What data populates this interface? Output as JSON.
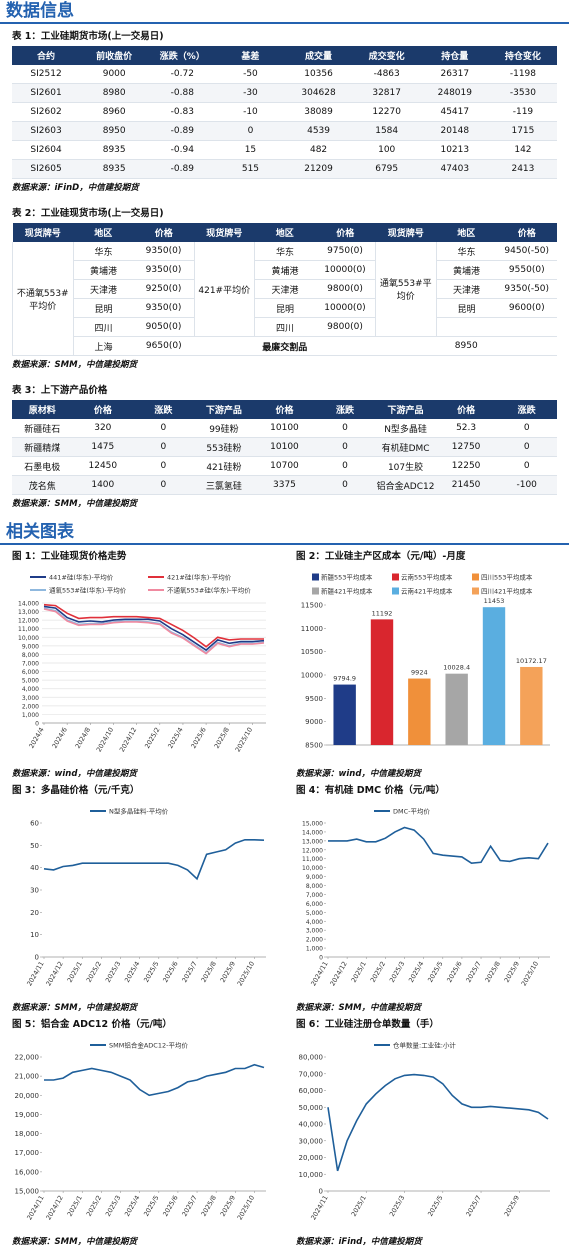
{
  "header": {
    "title": "数据信息"
  },
  "table1": {
    "title": "表 1：工业硅期货市场(上一交易日)",
    "columns": [
      "合约",
      "前收盘价",
      "涨跌（%）",
      "基差",
      "成交量",
      "成交变化",
      "持仓量",
      "持仓变化"
    ],
    "rows": [
      [
        "SI2512",
        "9000",
        "-0.72",
        "-50",
        "10356",
        "-4863",
        "26317",
        "-1198"
      ],
      [
        "SI2601",
        "8980",
        "-0.88",
        "-30",
        "304628",
        "32817",
        "248019",
        "-3530"
      ],
      [
        "SI2602",
        "8960",
        "-0.83",
        "-10",
        "38089",
        "12270",
        "45417",
        "-119"
      ],
      [
        "SI2603",
        "8950",
        "-0.89",
        "0",
        "4539",
        "1584",
        "20148",
        "1715"
      ],
      [
        "SI2604",
        "8935",
        "-0.94",
        "15",
        "482",
        "100",
        "10213",
        "142"
      ],
      [
        "SI2605",
        "8935",
        "-0.89",
        "515",
        "21209",
        "6795",
        "47403",
        "2413"
      ]
    ],
    "source": "数据来源：iFinD，中信建投期货"
  },
  "table2": {
    "title": "表 2：工业硅现货市场(上一交易日)",
    "columns": [
      "现货牌号",
      "地区",
      "价格",
      "现货牌号",
      "地区",
      "价格",
      "现货牌号",
      "地区",
      "价格"
    ],
    "groups": [
      {
        "grade": "不通氧553#平均价",
        "rows": [
          [
            "华东",
            "9350(0)"
          ],
          [
            "黄埔港",
            "9350(0)"
          ],
          [
            "天津港",
            "9250(0)"
          ],
          [
            "昆明",
            "9350(0)"
          ],
          [
            "四川",
            "9050(0)"
          ],
          [
            "上海",
            "9650(0)"
          ]
        ]
      },
      {
        "grade": "421#平均价",
        "rows": [
          [
            "华东",
            "9750(0)"
          ],
          [
            "黄埔港",
            "10000(0)"
          ],
          [
            "天津港",
            "9800(0)"
          ],
          [
            "昆明",
            "10000(0)"
          ],
          [
            "四川",
            "9800(0)"
          ]
        ]
      },
      {
        "grade": "通氧553#平均价",
        "rows": [
          [
            "华东",
            "9450(-50)"
          ],
          [
            "黄埔港",
            "9550(0)"
          ],
          [
            "天津港",
            "9350(-50)"
          ],
          [
            "昆明",
            "9600(0)"
          ]
        ]
      }
    ],
    "cheapest": {
      "label": "最廉交割品",
      "value": "8950"
    },
    "source": "数据来源：SMM，中信建投期货"
  },
  "table3": {
    "title": "表 3：上下游产品价格",
    "columns": [
      "原材料",
      "价格",
      "涨跌",
      "下游产品",
      "价格",
      "涨跌",
      "下游产品",
      "价格",
      "涨跌"
    ],
    "rows": [
      [
        "新疆硅石",
        "320",
        "0",
        "99硅粉",
        "10100",
        "0",
        "N型多晶硅",
        "52.3",
        "0"
      ],
      [
        "新疆精煤",
        "1475",
        "0",
        "553硅粉",
        "10100",
        "0",
        "有机硅DMC",
        "12750",
        "0"
      ],
      [
        "石墨电极",
        "12450",
        "0",
        "421硅粉",
        "10700",
        "0",
        "107生胶",
        "12250",
        "0"
      ],
      [
        "茂名焦",
        "1400",
        "0",
        "三氯氢硅",
        "3375",
        "0",
        "铝合金ADC12",
        "21450",
        "-100"
      ]
    ],
    "source": "数据来源：SMM，中信建投期货"
  },
  "section2": {
    "title": "相关图表"
  },
  "chart_data": [
    {
      "type": "line",
      "title": "图 1：工业硅现货价格走势",
      "source": "数据来源：wind，中信建投期货",
      "grid": true,
      "legend": "top",
      "categories": [
        "2024/4",
        null,
        "2024/6",
        null,
        "2024/8",
        null,
        "2024/10",
        null,
        "2024/12",
        null,
        "2025/2",
        null,
        "2025/4",
        null,
        "2025/6",
        null,
        "2025/8",
        null,
        "2025/10",
        null
      ],
      "series": [
        {
          "name": "441#硅(华东)-平均价",
          "color": "#1f3c88",
          "values": [
            13600,
            13400,
            12300,
            11800,
            11900,
            11800,
            12000,
            12100,
            12100,
            12100,
            11900,
            11000,
            10300,
            9400,
            8500,
            9700,
            9300,
            9500,
            9500,
            9600
          ]
        },
        {
          "name": "421#硅(华东)-平均价",
          "color": "#e0303a",
          "values": [
            13800,
            13700,
            12800,
            12200,
            12300,
            12300,
            12400,
            12400,
            12400,
            12300,
            12200,
            11500,
            10800,
            9900,
            8900,
            10000,
            9700,
            9800,
            9800,
            9800
          ]
        },
        {
          "name": "通氧553#硅(华东)-平均价",
          "color": "#8fb8de",
          "values": [
            13400,
            13100,
            12000,
            11500,
            11600,
            11600,
            11800,
            11900,
            11900,
            11800,
            11600,
            10600,
            10000,
            9100,
            8200,
            9400,
            9000,
            9300,
            9300,
            9400
          ]
        },
        {
          "name": "不通氧553#硅(华东)-平均价",
          "color": "#f08aa0",
          "values": [
            13300,
            13000,
            11900,
            11400,
            11500,
            11500,
            11700,
            11800,
            11800,
            11700,
            11500,
            10500,
            9900,
            9000,
            8100,
            9300,
            8900,
            9200,
            9200,
            9350
          ]
        }
      ],
      "ylim": [
        0,
        14000
      ],
      "yticks": [
        0,
        {
          "value": 1000,
          "label": "1,000"
        },
        {
          "value": 2000,
          "label": "2,000"
        },
        {
          "value": 3000,
          "label": "3,000"
        },
        {
          "value": 4000,
          "label": "4,000"
        },
        {
          "value": 5000,
          "label": "5,000"
        },
        {
          "value": 6000,
          "label": "6,000"
        },
        {
          "value": 7000,
          "label": "7,000"
        },
        {
          "value": 8000,
          "label": "8,000"
        },
        {
          "value": 9000,
          "label": "9,000"
        },
        {
          "value": 10000,
          "label": "10,000"
        },
        {
          "value": 11000,
          "label": "11,000"
        },
        {
          "value": 12000,
          "label": "12,000"
        },
        {
          "value": 13000,
          "label": "13,000"
        },
        {
          "value": 14000,
          "label": "14,000"
        }
      ]
    },
    {
      "type": "bar",
      "title": "图 2：工业硅主产区成本（元/吨）-月度",
      "source": "数据来源：wind，中信建投期货",
      "grid": false,
      "legend": "top",
      "categories": [
        "新疆553平均成本",
        "云南553平均成本",
        "四川553平均成本",
        "新疆421平均成本",
        "云南421平均成本",
        "四川421平均成本"
      ],
      "values": [
        9794.9,
        11192,
        9924,
        10028.4,
        11453,
        10172.17
      ],
      "colors": [
        "#1f3c88",
        "#d9262e",
        "#f0903a",
        "#a6a6a6",
        "#5aaee0",
        "#f4a259"
      ],
      "ylim": [
        8500,
        11500
      ],
      "yticks": [
        8500,
        9000,
        9500,
        10000,
        10500,
        11000,
        11500
      ]
    },
    {
      "type": "line",
      "title": "图 3：多晶硅价格（元/千克）",
      "source": "数据来源：SMM，中信建投期货",
      "grid": false,
      "legend": "top",
      "categories": [
        "2024/11",
        null,
        "2024/12",
        null,
        "2025/1",
        null,
        "2025/2",
        null,
        "2025/3",
        null,
        "2025/4",
        null,
        "2025/5",
        null,
        "2025/6",
        null,
        "2025/7",
        null,
        "2025/8",
        null,
        "2025/9",
        null,
        "2025/10",
        null
      ],
      "series": [
        {
          "name": "N型多晶硅料-平均价",
          "color": "#1f5f9a",
          "values": [
            39.5,
            39,
            40.5,
            41,
            42,
            42,
            42,
            42,
            42,
            42,
            42,
            42,
            42,
            42,
            41,
            39,
            35,
            46,
            47,
            48,
            51,
            52.5,
            52.5,
            52.3
          ]
        }
      ],
      "ylim": [
        0,
        60
      ],
      "yticks": [
        0,
        10,
        20,
        30,
        40,
        50,
        60
      ]
    },
    {
      "type": "line",
      "title": "图 4：有机硅 DMC 价格（元/吨）",
      "source": "数据来源：SMM，中信建投期货",
      "grid": false,
      "legend": "top",
      "categories": [
        "2024/11",
        null,
        "2024/12",
        null,
        "2025/1",
        null,
        "2025/2",
        null,
        "2025/3",
        null,
        "2025/4",
        null,
        "2025/5",
        null,
        "2025/6",
        null,
        "2025/7",
        null,
        "2025/8",
        null,
        "2025/9",
        null,
        "2025/10",
        null
      ],
      "series": [
        {
          "name": "DMC-平均价",
          "color": "#1f5f9a",
          "values": [
            13000,
            13000,
            13000,
            13200,
            12900,
            12900,
            13300,
            14000,
            14500,
            14200,
            13200,
            11600,
            11400,
            11300,
            11200,
            10500,
            10600,
            12400,
            10800,
            10700,
            11000,
            11100,
            11000,
            12750
          ]
        }
      ],
      "ylim": [
        0,
        15000
      ],
      "yticks": [
        0,
        {
          "value": 1000,
          "label": "1,000"
        },
        {
          "value": 2000,
          "label": "2,000"
        },
        {
          "value": 3000,
          "label": "3,000"
        },
        {
          "value": 4000,
          "label": "4,000"
        },
        {
          "value": 5000,
          "label": "5,000"
        },
        {
          "value": 6000,
          "label": "6,000"
        },
        {
          "value": 7000,
          "label": "7,000"
        },
        {
          "value": 8000,
          "label": "8,000"
        },
        {
          "value": 9000,
          "label": "9,000"
        },
        {
          "value": 10000,
          "label": "10,000"
        },
        {
          "value": 11000,
          "label": "11,000"
        },
        {
          "value": 12000,
          "label": "12,000"
        },
        {
          "value": 13000,
          "label": "13,000"
        },
        {
          "value": 14000,
          "label": "14,000"
        },
        {
          "value": 15000,
          "label": "15,000"
        }
      ]
    },
    {
      "type": "line",
      "title": "图 5：铝合金 ADC12 价格（元/吨）",
      "source": "数据来源：SMM，中信建投期货",
      "grid": false,
      "legend": "top",
      "categories": [
        "2024/11",
        null,
        "2024/12",
        null,
        "2025/1",
        null,
        "2025/2",
        null,
        "2025/3",
        null,
        "2025/4",
        null,
        "2025/5",
        null,
        "2025/6",
        null,
        "2025/7",
        null,
        "2025/8",
        null,
        "2025/9",
        null,
        "2025/10",
        null
      ],
      "series": [
        {
          "name": "SMM铝合金ADC12-平均价",
          "color": "#1f5f9a",
          "values": [
            20800,
            20800,
            20900,
            21200,
            21300,
            21400,
            21300,
            21200,
            21000,
            20800,
            20300,
            20000,
            20100,
            20200,
            20400,
            20700,
            20800,
            21000,
            21100,
            21200,
            21400,
            21400,
            21600,
            21450
          ]
        }
      ],
      "ylim": [
        15000,
        22000
      ],
      "yticks": [
        {
          "value": 15000,
          "label": "15,000"
        },
        {
          "value": 16000,
          "label": "16,000"
        },
        {
          "value": 17000,
          "label": "17,000"
        },
        {
          "value": 18000,
          "label": "18,000"
        },
        {
          "value": 19000,
          "label": "19,000"
        },
        {
          "value": 20000,
          "label": "20,000"
        },
        {
          "value": 21000,
          "label": "21,000"
        },
        {
          "value": 22000,
          "label": "22,000"
        }
      ]
    },
    {
      "type": "line",
      "title": "图 6：工业硅注册仓单数量（手）",
      "source": "数据来源：iFind，中信建投期货",
      "grid": false,
      "legend": "top",
      "categories": [
        "2024/11",
        null,
        null,
        null,
        "2025/1",
        null,
        null,
        null,
        "2025/3",
        null,
        null,
        null,
        "2025/5",
        null,
        null,
        null,
        "2025/7",
        null,
        null,
        null,
        "2025/9",
        null,
        null,
        null
      ],
      "series": [
        {
          "name": "仓单数量:工业硅:小计",
          "color": "#1f5f9a",
          "values": [
            50000,
            12000,
            30000,
            42000,
            52000,
            58000,
            63000,
            67000,
            69000,
            69500,
            69000,
            68000,
            64000,
            57000,
            52000,
            50000,
            50000,
            50500,
            50000,
            49500,
            49000,
            48500,
            47000,
            43000
          ]
        }
      ],
      "ylim": [
        0,
        80000
      ],
      "yticks": [
        0,
        {
          "value": 10000,
          "label": "10,000"
        },
        {
          "value": 20000,
          "label": "20,000"
        },
        {
          "value": 30000,
          "label": "30,000"
        },
        {
          "value": 40000,
          "label": "40,000"
        },
        {
          "value": 50000,
          "label": "50,000"
        },
        {
          "value": 60000,
          "label": "60,000"
        },
        {
          "value": 70000,
          "label": "70,000"
        },
        {
          "value": 80000,
          "label": "80,000"
        }
      ]
    }
  ]
}
